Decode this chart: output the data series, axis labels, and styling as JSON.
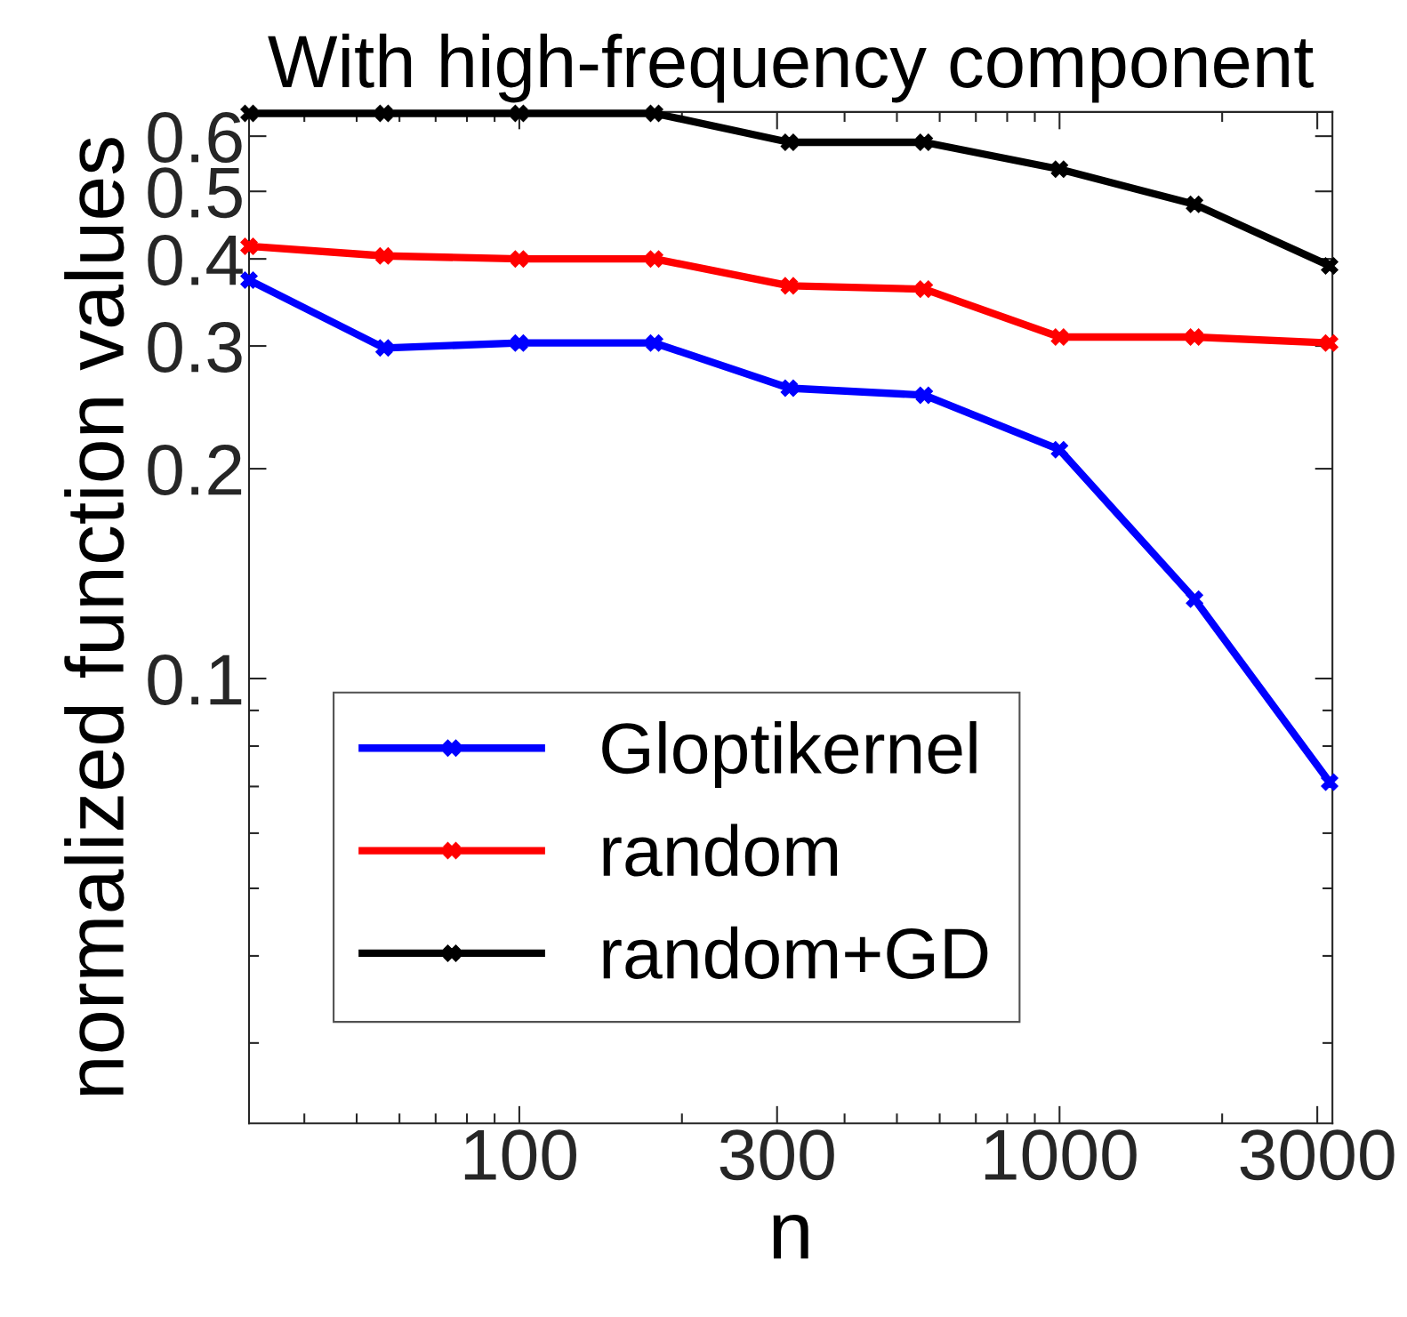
{
  "chart_data": {
    "type": "line",
    "title": "With high-frequency component",
    "xlabel": "n",
    "ylabel": "normalized function values",
    "log": "xy",
    "x": [
      31.6,
      56.2,
      100,
      178,
      316,
      562,
      1000,
      1778,
      3162
    ],
    "series": [
      {
        "name": "Gloptikernel",
        "color": "#0000ff",
        "values": [
          0.373,
          0.298,
          0.303,
          0.303,
          0.261,
          0.255,
          0.213,
          0.13,
          0.071
        ]
      },
      {
        "name": "random",
        "color": "#ff0000",
        "values": [
          0.417,
          0.404,
          0.4,
          0.4,
          0.366,
          0.362,
          0.309,
          0.309,
          0.303
        ]
      },
      {
        "name": "random+GD",
        "color": "#000000",
        "values": [
          0.647,
          0.647,
          0.647,
          0.647,
          0.588,
          0.588,
          0.538,
          0.479,
          0.391
        ]
      }
    ],
    "xlim": [
      31.6,
      3200
    ],
    "ylim": [
      0.023,
      0.65
    ],
    "xticks": [
      100,
      300,
      1000,
      3000
    ],
    "yticks": [
      0.1,
      0.2,
      0.3,
      0.4,
      0.5,
      0.6
    ],
    "marker": "cross",
    "line_style": "solid",
    "grid": false,
    "legend": "bottom left"
  }
}
